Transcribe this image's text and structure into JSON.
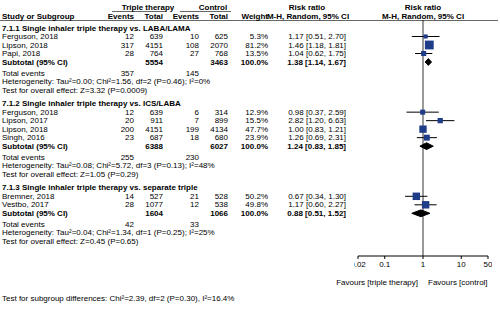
{
  "chart_data": {
    "type": "forest",
    "log": "x",
    "xlim": [
      0.02,
      50
    ],
    "xticks": [
      0.02,
      0.1,
      1,
      10,
      50
    ],
    "null_line": 1,
    "color": "#1f3c88",
    "x_labels": [
      "Favours [triple therapy]",
      "Favours [control]"
    ],
    "headers": {
      "group_row": [
        "Triple therapy",
        "Control",
        "Risk ratio",
        "Risk ratio"
      ],
      "columns": [
        "Study or Subgroup",
        "Events",
        "Total",
        "Events",
        "Total",
        "Weight",
        "M-H, Random, 95% CI",
        "M-H, Random, 95% CI"
      ]
    },
    "subgroups": [
      {
        "title": "7.1.1 Single inhaler triple therapy vs. LABA/LAMA",
        "studies": [
          {
            "name": "Ferguson, 2018",
            "events_triple": 12,
            "total_triple": 639,
            "events_control": 10,
            "total_control": 625,
            "weight": 5.3,
            "weight_label": "5.3%",
            "rr": 1.17,
            "lo": 0.51,
            "hi": 2.7,
            "ci_label": "1.17 [0.51, 2.70]"
          },
          {
            "name": "Lipson, 2018",
            "events_triple": 317,
            "total_triple": 4151,
            "events_control": 108,
            "total_control": 2070,
            "weight": 81.2,
            "weight_label": "81.2%",
            "rr": 1.46,
            "lo": 1.18,
            "hi": 1.81,
            "ci_label": "1.46 [1.18, 1.81]"
          },
          {
            "name": "Papi, 2018",
            "events_triple": 28,
            "total_triple": 764,
            "events_control": 27,
            "total_control": 768,
            "weight": 13.5,
            "weight_label": "13.5%",
            "rr": 1.04,
            "lo": 0.62,
            "hi": 1.75,
            "ci_label": "1.04 [0.62, 1.75]"
          }
        ],
        "subtotal": {
          "label": "Subtotal (95% CI)",
          "total_triple": 5554,
          "total_control": 3463,
          "weight": 100.0,
          "weight_label": "100.0%",
          "rr": 1.38,
          "lo": 1.14,
          "hi": 1.67,
          "ci_label": "1.38 [1.14, 1.67]"
        },
        "total_events": {
          "label": "Total events",
          "triple": 357,
          "control": 145
        },
        "heterogeneity": "Heterogeneity: Tau²=0.00; Chi²=1.56, df=2 (P=0.46); I²=0%",
        "overall_effect": "Test for overall effect: Z=3.32 (P=0.0009)"
      },
      {
        "title": "7.1.2 Single inhaler triple therapy vs. ICS/LABA",
        "studies": [
          {
            "name": "Ferguson, 2018",
            "events_triple": 12,
            "total_triple": 639,
            "events_control": 6,
            "total_control": 314,
            "weight": 12.9,
            "weight_label": "12.9%",
            "rr": 0.98,
            "lo": 0.37,
            "hi": 2.59,
            "ci_label": "0.98 [0.37, 2.59]"
          },
          {
            "name": "Lipson, 2017",
            "events_triple": 20,
            "total_triple": 911,
            "events_control": 7,
            "total_control": 899,
            "weight": 15.5,
            "weight_label": "15.5%",
            "rr": 2.82,
            "lo": 1.2,
            "hi": 6.63,
            "ci_label": "2.82 [1.20, 6.63]"
          },
          {
            "name": "Lipson, 2018",
            "events_triple": 200,
            "total_triple": 4151,
            "events_control": 199,
            "total_control": 4134,
            "weight": 47.7,
            "weight_label": "47.7%",
            "rr": 1.0,
            "lo": 0.83,
            "hi": 1.21,
            "ci_label": "1.00 [0.83, 1.21]"
          },
          {
            "name": "Singh, 2016",
            "events_triple": 23,
            "total_triple": 687,
            "events_control": 18,
            "total_control": 680,
            "weight": 23.9,
            "weight_label": "23.9%",
            "rr": 1.26,
            "lo": 0.69,
            "hi": 2.31,
            "ci_label": "1.26 [0.69, 2.31]"
          }
        ],
        "subtotal": {
          "label": "Subtotal (95% CI)",
          "total_triple": 6388,
          "total_control": 6027,
          "weight": 100.0,
          "weight_label": "100.0%",
          "rr": 1.24,
          "lo": 0.83,
          "hi": 1.85,
          "ci_label": "1.24 [0.83, 1.85]"
        },
        "total_events": {
          "label": "Total events",
          "triple": 255,
          "control": 230
        },
        "heterogeneity": "Heterogeneity: Tau²=0.08; Chi²=5.72, df=3 (P=0.13); I²=48%",
        "overall_effect": "Test for overall effect: Z=1.05 (P=0.29)"
      },
      {
        "title": "7.1.3 Single inhaler triple therapy vs. separate triple",
        "studies": [
          {
            "name": "Bremner, 2018",
            "events_triple": 14,
            "total_triple": 527,
            "events_control": 21,
            "total_control": 528,
            "weight": 50.2,
            "weight_label": "50.2%",
            "rr": 0.67,
            "lo": 0.34,
            "hi": 1.3,
            "ci_label": "0.67 [0.34, 1.30]"
          },
          {
            "name": "Vestbo, 2017",
            "events_triple": 28,
            "total_triple": 1077,
            "events_control": 12,
            "total_control": 538,
            "weight": 49.8,
            "weight_label": "49.8%",
            "rr": 1.17,
            "lo": 0.6,
            "hi": 2.27,
            "ci_label": "1.17 [0.60, 2.27]"
          }
        ],
        "subtotal": {
          "label": "Subtotal (95% CI)",
          "total_triple": 1604,
          "total_control": 1066,
          "weight": 100.0,
          "weight_label": "100.0%",
          "rr": 0.88,
          "lo": 0.51,
          "hi": 1.52,
          "ci_label": "0.88 [0.51, 1.52]"
        },
        "total_events": {
          "label": "Total events",
          "triple": 42,
          "control": 33
        },
        "heterogeneity": "Heterogeneity: Tau²=0.04; Chi²=1.34, df=1 (P=0.25); I²=25%",
        "overall_effect": "Test for overall effect: Z=0.45 (P=0.65)"
      }
    ],
    "subgroup_differences": "Test for subgroup differences: Chi²=2.39, df=2 (P=0.30), I²=16.4%"
  }
}
